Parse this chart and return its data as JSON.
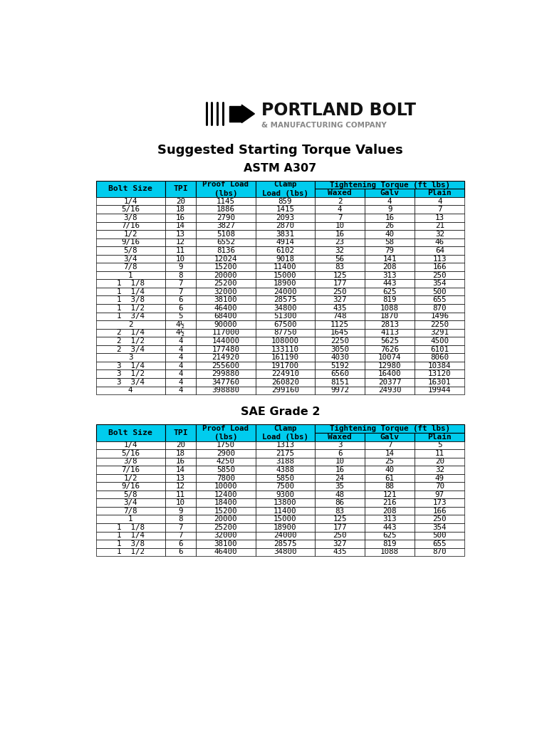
{
  "title": "Suggested Starting Torque Values",
  "subtitle1": "ASTM A307",
  "subtitle2": "SAE Grade 2",
  "header_color": "#00CCEE",
  "header_text_color": "#000000",
  "background_color": "#FFFFFF",
  "logo_text_main": "PORTLAND BOLT",
  "logo_text_sub": "& MANUFACTURING COMPANY",
  "astm_data": [
    [
      "1/4",
      "20",
      "1145",
      "859",
      "2",
      "4",
      "4"
    ],
    [
      "5/16",
      "18",
      "1886",
      "1415",
      "4",
      "9",
      "7"
    ],
    [
      "3/8",
      "16",
      "2790",
      "2093",
      "7",
      "16",
      "13"
    ],
    [
      "7/16",
      "14",
      "3827",
      "2870",
      "10",
      "26",
      "21"
    ],
    [
      "1/2",
      "13",
      "5108",
      "3831",
      "16",
      "40",
      "32"
    ],
    [
      "9/16",
      "12",
      "6552",
      "4914",
      "23",
      "58",
      "46"
    ],
    [
      "5/8",
      "11",
      "8136",
      "6102",
      "32",
      "79",
      "64"
    ],
    [
      "3/4",
      "10",
      "12024",
      "9018",
      "56",
      "141",
      "113"
    ],
    [
      "7/8",
      "9",
      "15200",
      "11400",
      "83",
      "208",
      "166"
    ],
    [
      "1",
      "8",
      "20000",
      "15000",
      "125",
      "313",
      "250"
    ],
    [
      "1  1/8",
      "7",
      "25200",
      "18900",
      "177",
      "443",
      "354"
    ],
    [
      "1  1/4",
      "7",
      "32000",
      "24000",
      "250",
      "625",
      "500"
    ],
    [
      "1  3/8",
      "6",
      "38100",
      "28575",
      "327",
      "819",
      "655"
    ],
    [
      "1  1/2",
      "6",
      "46400",
      "34800",
      "435",
      "1088",
      "870"
    ],
    [
      "1  3/4",
      "5",
      "68400",
      "51300",
      "748",
      "1870",
      "1496"
    ],
    [
      "2",
      "4½",
      "90000",
      "67500",
      "1125",
      "2813",
      "2250"
    ],
    [
      "2  1/4",
      "4½",
      "117000",
      "87750",
      "1645",
      "4113",
      "3291"
    ],
    [
      "2  1/2",
      "4",
      "144000",
      "108000",
      "2250",
      "5625",
      "4500"
    ],
    [
      "2  3/4",
      "4",
      "177480",
      "133110",
      "3050",
      "7626",
      "6101"
    ],
    [
      "3",
      "4",
      "214920",
      "161190",
      "4030",
      "10074",
      "8060"
    ],
    [
      "3  1/4",
      "4",
      "255600",
      "191700",
      "5192",
      "12980",
      "10384"
    ],
    [
      "3  1/2",
      "4",
      "299880",
      "224910",
      "6560",
      "16400",
      "13120"
    ],
    [
      "3  3/4",
      "4",
      "347760",
      "260820",
      "8151",
      "20377",
      "16301"
    ],
    [
      "4",
      "4",
      "398880",
      "299160",
      "9972",
      "24930",
      "19944"
    ]
  ],
  "sae_data": [
    [
      "1/4",
      "20",
      "1750",
      "1313",
      "3",
      "7",
      "5"
    ],
    [
      "5/16",
      "18",
      "2900",
      "2175",
      "6",
      "14",
      "11"
    ],
    [
      "3/8",
      "16",
      "4250",
      "3188",
      "10",
      "25",
      "20"
    ],
    [
      "7/16",
      "14",
      "5850",
      "4388",
      "16",
      "40",
      "32"
    ],
    [
      "1/2",
      "13",
      "7800",
      "5850",
      "24",
      "61",
      "49"
    ],
    [
      "9/16",
      "12",
      "10000",
      "7500",
      "35",
      "88",
      "70"
    ],
    [
      "5/8",
      "11",
      "12400",
      "9300",
      "48",
      "121",
      "97"
    ],
    [
      "3/4",
      "10",
      "18400",
      "13800",
      "86",
      "216",
      "173"
    ],
    [
      "7/8",
      "9",
      "15200",
      "11400",
      "83",
      "208",
      "166"
    ],
    [
      "1",
      "8",
      "20000",
      "15000",
      "125",
      "313",
      "250"
    ],
    [
      "1  1/8",
      "7",
      "25200",
      "18900",
      "177",
      "443",
      "354"
    ],
    [
      "1  1/4",
      "7",
      "32000",
      "24000",
      "250",
      "625",
      "500"
    ],
    [
      "1  3/8",
      "6",
      "38100",
      "28575",
      "327",
      "819",
      "655"
    ],
    [
      "1  1/2",
      "6",
      "46400",
      "34800",
      "435",
      "1088",
      "870"
    ]
  ]
}
